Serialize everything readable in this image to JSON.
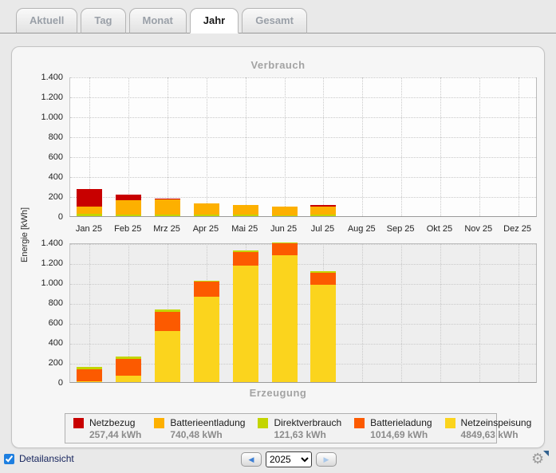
{
  "tabs": [
    {
      "label": "Aktuell",
      "active": false
    },
    {
      "label": "Tag",
      "active": false
    },
    {
      "label": "Monat",
      "active": false
    },
    {
      "label": "Jahr",
      "active": true
    },
    {
      "label": "Gesamt",
      "active": false
    }
  ],
  "colors": {
    "netzbezug": "#c80000",
    "batterieentladung": "#fdb000",
    "direktverbrauch": "#c3d500",
    "batterieladung": "#fc5a00",
    "netzeinspeisung": "#fbd41d",
    "grid": "#c9c9c9",
    "title_gray": "#a3a3a3"
  },
  "chart_data": [
    {
      "type": "bar",
      "stacked": true,
      "title": "Verbrauch",
      "ylabel": "Energie [kWh]",
      "ylim": [
        0,
        1400
      ],
      "ytick_labels": [
        "1.400",
        "1.200",
        "1.000",
        "800",
        "600",
        "400",
        "200",
        "0"
      ],
      "categories": [
        "Jan 25",
        "Feb 25",
        "Mrz 25",
        "Apr 25",
        "Mai 25",
        "Jun 25",
        "Jul 25",
        "Aug 25",
        "Sep 25",
        "Okt 25",
        "Nov 25",
        "Dez 25"
      ],
      "grid": true,
      "legend_position": "bottom-shared",
      "series": [
        {
          "name": "Direktverbrauch",
          "color": "#c3d500",
          "values": [
            24,
            20,
            20,
            14,
            16,
            12,
            14,
            0,
            0,
            0,
            0,
            0
          ]
        },
        {
          "name": "Batterieentladung",
          "color": "#fdb000",
          "values": [
            70,
            140,
            150,
            112,
            95,
            88,
            85,
            0,
            0,
            0,
            0,
            0
          ]
        },
        {
          "name": "Netzbezug",
          "color": "#c80000",
          "values": [
            175,
            58,
            10,
            0,
            0,
            0,
            14,
            0,
            0,
            0,
            0,
            0
          ]
        }
      ]
    },
    {
      "type": "bar",
      "stacked": true,
      "title": "Erzeugung",
      "ylabel": "Energie [kWh]",
      "ylim": [
        0,
        1400
      ],
      "ytick_labels": [
        "1.400",
        "1.200",
        "1.000",
        "800",
        "600",
        "400",
        "200",
        "0"
      ],
      "categories": [
        "Jan 25",
        "Feb 25",
        "Mrz 25",
        "Apr 25",
        "Mai 25",
        "Jun 25",
        "Jul 25",
        "Aug 25",
        "Sep 25",
        "Okt 25",
        "Nov 25",
        "Dez 25"
      ],
      "grid": true,
      "legend_position": "bottom-shared",
      "series": [
        {
          "name": "Netzeinspeisung",
          "color": "#fbd41d",
          "values": [
            5,
            65,
            510,
            855,
            1165,
            1270,
            975,
            0,
            0,
            0,
            0,
            0
          ]
        },
        {
          "name": "Batterieladung",
          "color": "#fc5a00",
          "values": [
            120,
            170,
            195,
            150,
            140,
            120,
            120,
            0,
            0,
            0,
            0,
            0
          ]
        },
        {
          "name": "Direktverbrauch",
          "color": "#c3d500",
          "values": [
            24,
            20,
            20,
            14,
            16,
            12,
            14,
            0,
            0,
            0,
            0,
            0
          ]
        }
      ]
    }
  ],
  "legend": [
    {
      "name": "Netzbezug",
      "value": "257,44 kWh",
      "color": "#c80000"
    },
    {
      "name": "Batterieentladung",
      "value": "740,48 kWh",
      "color": "#fdb000"
    },
    {
      "name": "Direktverbrauch",
      "value": "121,63 kWh",
      "color": "#c3d500"
    },
    {
      "name": "Batterieladung",
      "value": "1014,69 kWh",
      "color": "#fc5a00"
    },
    {
      "name": "Netzeinspeisung",
      "value": "4849,63 kWh",
      "color": "#fbd41d"
    }
  ],
  "footer": {
    "detail_label": "Detailansicht",
    "detail_checked": true,
    "year": "2025",
    "prev_glyph": "◀",
    "next_glyph": "▶",
    "gear_glyph": "⚙"
  }
}
